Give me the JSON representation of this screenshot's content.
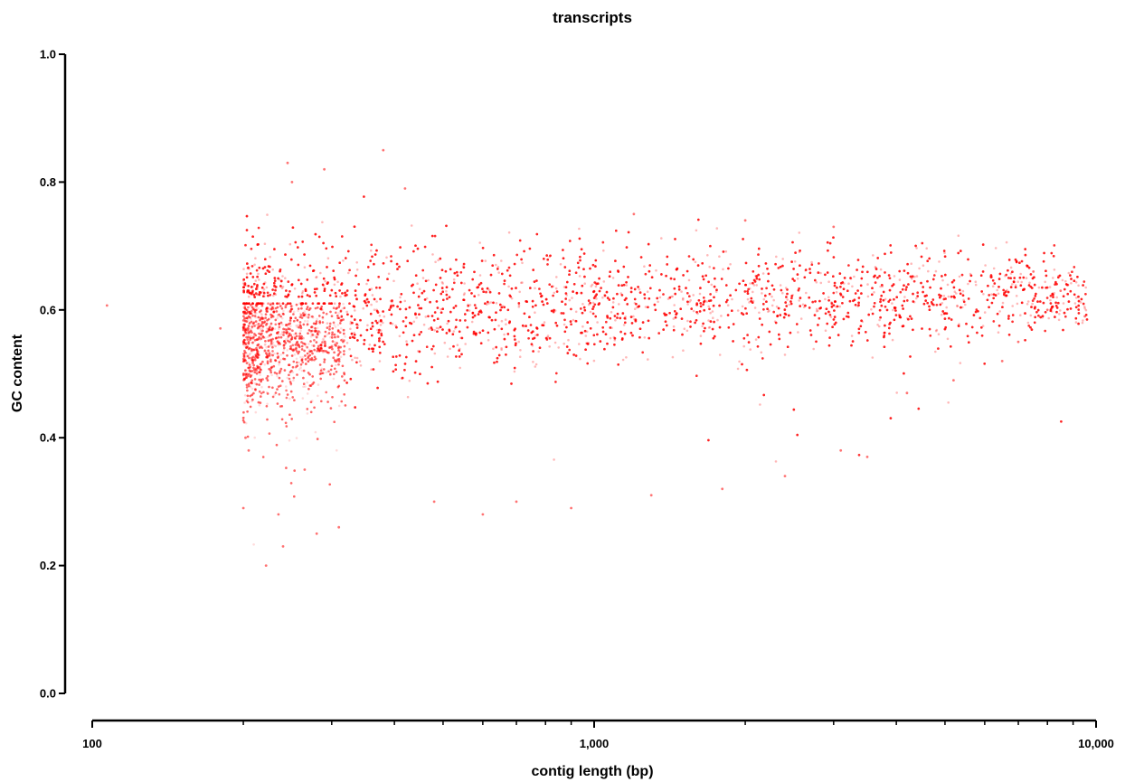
{
  "chart_data": {
    "type": "scatter",
    "title": "transcripts",
    "xlabel": "contig length (bp)",
    "ylabel": "GC content",
    "x_scale": "log",
    "xlim": [
      100,
      10000
    ],
    "ylim": [
      0.0,
      1.0
    ],
    "x_ticks": [
      {
        "value": 100,
        "label": "100"
      },
      {
        "value": 1000,
        "label": "1,000"
      },
      {
        "value": 10000,
        "label": "10,000"
      }
    ],
    "y_ticks": [
      {
        "value": 0.0,
        "label": "0.0"
      },
      {
        "value": 0.2,
        "label": "0.2"
      },
      {
        "value": 0.4,
        "label": "0.4"
      },
      {
        "value": 0.6,
        "label": "0.6"
      },
      {
        "value": 0.8,
        "label": "0.8"
      },
      {
        "value": 1.0,
        "label": "1.0"
      }
    ],
    "grid": false,
    "legend": "none",
    "point_color": "#ff0000",
    "series": [
      {
        "points": [
          [
            107,
            0.607
          ],
          [
            180,
            0.571
          ],
          [
            200,
            0.29
          ],
          [
            202,
            0.4
          ],
          [
            205,
            0.38
          ],
          [
            222,
            0.2
          ],
          [
            235,
            0.28
          ],
          [
            240,
            0.23
          ],
          [
            245,
            0.83
          ],
          [
            250,
            0.8
          ],
          [
            265,
            0.35
          ],
          [
            280,
            0.25
          ],
          [
            290,
            0.82
          ],
          [
            310,
            0.26
          ],
          [
            380,
            0.85
          ],
          [
            420,
            0.79
          ],
          [
            480,
            0.3
          ],
          [
            600,
            0.28
          ],
          [
            700,
            0.3
          ],
          [
            900,
            0.29
          ],
          [
            1300,
            0.31
          ],
          [
            1800,
            0.32
          ],
          [
            2400,
            0.34
          ],
          [
            3100,
            0.38
          ],
          [
            3500,
            0.37
          ],
          [
            4200,
            0.47
          ],
          [
            5200,
            0.49
          ],
          [
            6500,
            0.52
          ],
          [
            7000,
            0.55
          ],
          [
            8500,
            0.63
          ],
          [
            9500,
            0.59
          ],
          [
            8000,
            0.6
          ],
          [
            7500,
            0.66
          ],
          [
            3000,
            0.73
          ],
          [
            2000,
            0.74
          ],
          [
            1200,
            0.75
          ]
        ]
      }
    ]
  }
}
